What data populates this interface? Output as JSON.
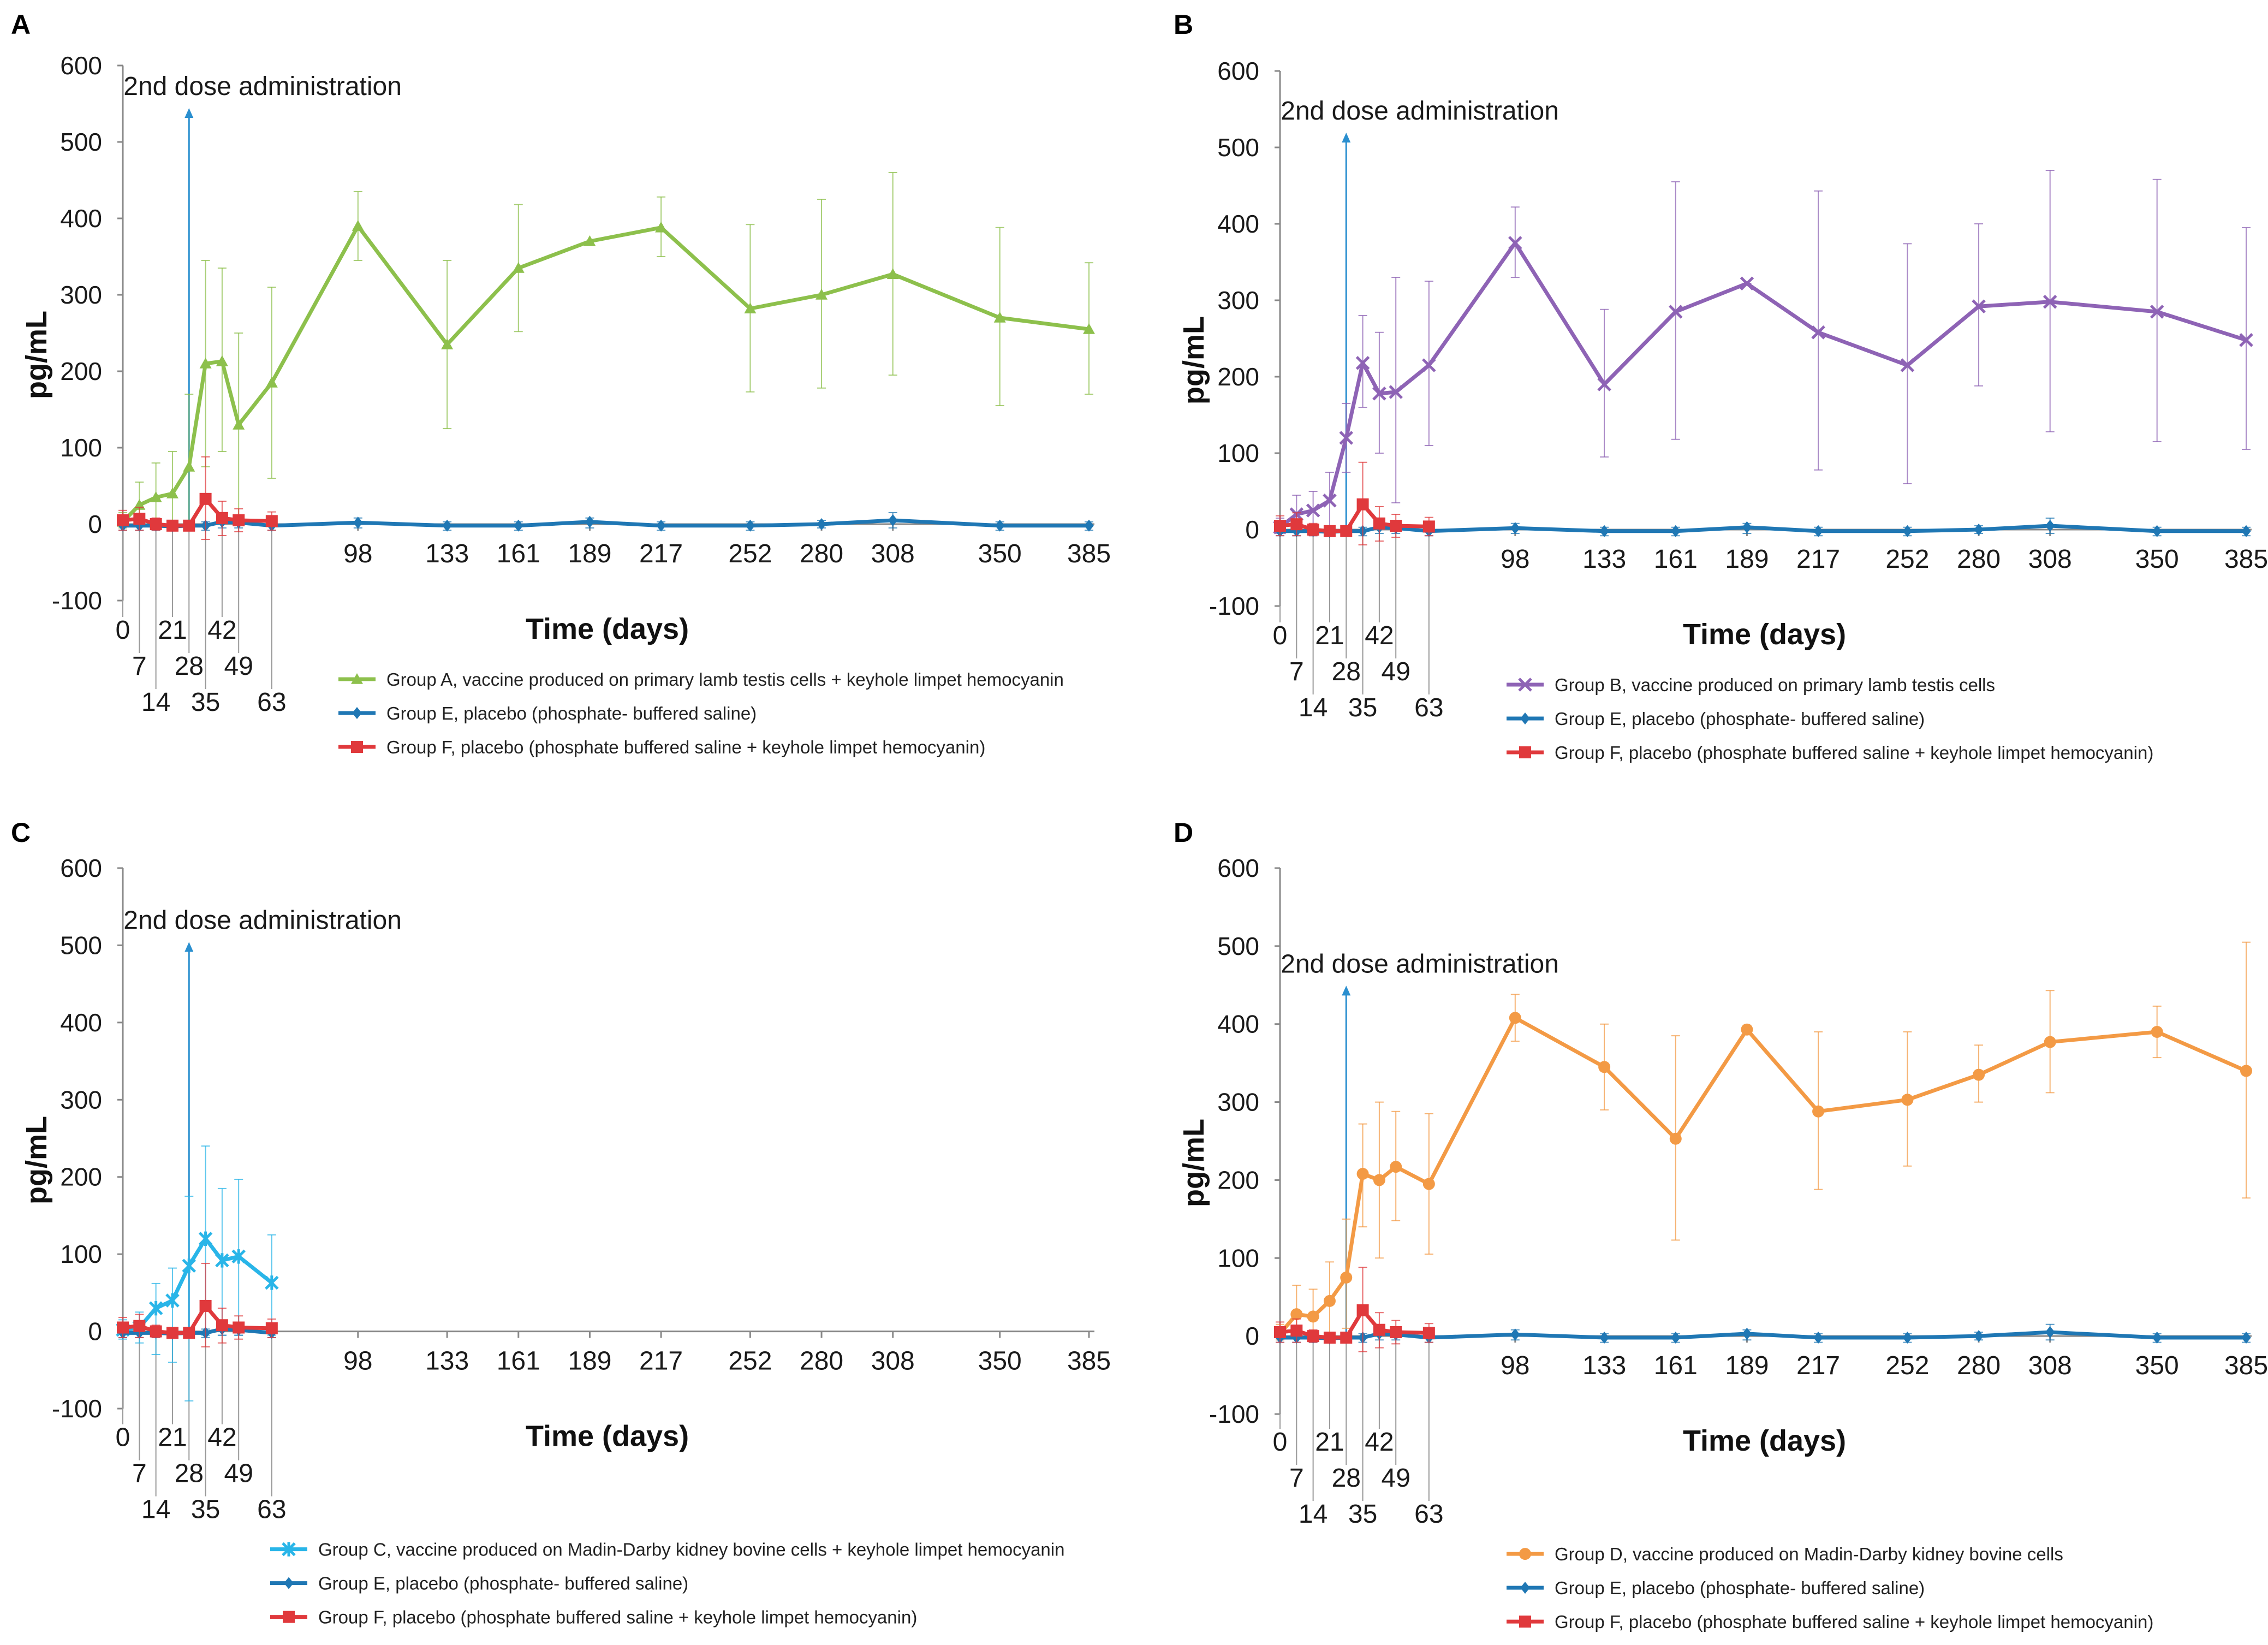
{
  "chart_data": [
    {
      "panel": "A",
      "type": "line",
      "annotation": "2nd dose administration",
      "annotation_day": 28,
      "ylabel": "pg/mL",
      "xlabel": "Time (days)",
      "ylim": [
        -100,
        600
      ],
      "yticks": [
        -100,
        0,
        100,
        200,
        300,
        400,
        500,
        600
      ],
      "x_ticks_late": [
        98,
        133,
        161,
        189,
        217,
        252,
        280,
        308,
        350,
        385
      ],
      "x_ticks_early": [
        0,
        7,
        14,
        21,
        28,
        35,
        42,
        49,
        63
      ],
      "series": [
        {
          "name": "Group A, vaccine produced on primary lamb testis cells + keyhole limpet hemocyanin",
          "color": "#8dc04c",
          "marker": "triangle",
          "x": [
            0,
            7,
            14,
            21,
            28,
            35,
            42,
            49,
            63,
            98,
            133,
            161,
            189,
            217,
            252,
            280,
            308,
            350,
            385
          ],
          "values": [
            3,
            25,
            35,
            40,
            75,
            210,
            213,
            130,
            185,
            390,
            235,
            335,
            370,
            388,
            282,
            300,
            327,
            270,
            255
          ],
          "err_hi": [
            15,
            55,
            80,
            95,
            170,
            345,
            335,
            250,
            310,
            435,
            345,
            418,
            370,
            428,
            392,
            425,
            460,
            388,
            342
          ],
          "err_lo": [
            -5,
            5,
            5,
            5,
            5,
            75,
            95,
            10,
            60,
            345,
            125,
            252,
            370,
            350,
            173,
            178,
            195,
            155,
            170
          ]
        },
        {
          "name": "Group E, placebo (phosphate- buffered saline)",
          "color": "#1f77b4",
          "marker": "diamond",
          "x": [
            0,
            7,
            14,
            21,
            28,
            35,
            42,
            49,
            63,
            98,
            133,
            161,
            189,
            217,
            252,
            280,
            308,
            350,
            385
          ],
          "values": [
            -2,
            -2,
            -2,
            -3,
            -2,
            -2,
            3,
            2,
            -2,
            2,
            -2,
            -2,
            3,
            -2,
            -2,
            0,
            5,
            -2,
            -2
          ],
          "err_hi": [
            3,
            3,
            3,
            3,
            3,
            3,
            10,
            8,
            3,
            8,
            3,
            3,
            8,
            3,
            3,
            5,
            15,
            3,
            3
          ],
          "err_lo": [
            -8,
            -8,
            -8,
            -8,
            -8,
            -8,
            -5,
            -5,
            -8,
            -5,
            -8,
            -8,
            -5,
            -8,
            -8,
            -5,
            -5,
            -8,
            -8
          ]
        },
        {
          "name": "Group F, placebo (phosphate buffered saline + keyhole limpet hemocyanin)",
          "color": "#e0393c",
          "marker": "square",
          "x": [
            0,
            7,
            14,
            21,
            28,
            35,
            42,
            49,
            63
          ],
          "values": [
            5,
            7,
            0,
            -2,
            -2,
            33,
            8,
            5,
            4
          ],
          "err_hi": [
            18,
            22,
            8,
            5,
            5,
            88,
            30,
            20,
            16
          ],
          "err_lo": [
            -8,
            -8,
            -8,
            -8,
            -8,
            -20,
            -15,
            -10,
            -8
          ]
        }
      ]
    },
    {
      "panel": "B",
      "type": "line",
      "annotation": "2nd dose administration",
      "annotation_day": 28,
      "ylabel": "pg/mL",
      "xlabel": "Time (days)",
      "ylim": [
        -100,
        600
      ],
      "yticks": [
        -100,
        0,
        100,
        200,
        300,
        400,
        500,
        600
      ],
      "x_ticks_late": [
        98,
        133,
        161,
        189,
        217,
        252,
        280,
        308,
        350,
        385
      ],
      "x_ticks_early": [
        0,
        7,
        14,
        21,
        28,
        35,
        42,
        49,
        63
      ],
      "series": [
        {
          "name": "Group B, vaccine produced on primary lamb testis cells",
          "color": "#8e63b5",
          "marker": "cross",
          "x": [
            0,
            7,
            14,
            21,
            28,
            35,
            42,
            49,
            63,
            98,
            133,
            161,
            189,
            217,
            252,
            280,
            308,
            350,
            385
          ],
          "values": [
            3,
            20,
            25,
            38,
            120,
            218,
            178,
            180,
            215,
            375,
            190,
            285,
            322,
            258,
            215,
            292,
            298,
            285,
            248
          ],
          "err_hi": [
            15,
            45,
            50,
            75,
            165,
            280,
            258,
            330,
            325,
            422,
            288,
            455,
            322,
            443,
            374,
            400,
            470,
            458,
            395
          ],
          "err_lo": [
            -5,
            0,
            0,
            5,
            75,
            160,
            100,
            35,
            110,
            330,
            95,
            118,
            322,
            78,
            60,
            188,
            128,
            115,
            105
          ]
        },
        {
          "name": "Group E, placebo (phosphate- buffered saline)",
          "color": "#1f77b4",
          "marker": "diamond",
          "x": [
            0,
            7,
            14,
            21,
            28,
            35,
            42,
            49,
            63,
            98,
            133,
            161,
            189,
            217,
            252,
            280,
            308,
            350,
            385
          ],
          "values": [
            -2,
            -2,
            -2,
            -3,
            -2,
            -2,
            3,
            2,
            -2,
            2,
            -2,
            -2,
            3,
            -2,
            -2,
            0,
            5,
            -2,
            -2
          ],
          "err_hi": [
            3,
            3,
            3,
            3,
            3,
            3,
            10,
            8,
            3,
            8,
            3,
            3,
            8,
            3,
            3,
            5,
            15,
            3,
            3
          ],
          "err_lo": [
            -8,
            -8,
            -8,
            -8,
            -8,
            -8,
            -5,
            -5,
            -8,
            -5,
            -8,
            -8,
            -5,
            -8,
            -8,
            -5,
            -5,
            -8,
            -8
          ]
        },
        {
          "name": "Group F, placebo (phosphate buffered saline + keyhole limpet hemocyanin)",
          "color": "#e0393c",
          "marker": "square",
          "x": [
            0,
            7,
            14,
            21,
            28,
            35,
            42,
            49,
            63
          ],
          "values": [
            5,
            7,
            0,
            -2,
            -2,
            33,
            8,
            5,
            4
          ],
          "err_hi": [
            18,
            22,
            8,
            5,
            5,
            88,
            30,
            20,
            16
          ],
          "err_lo": [
            -8,
            -8,
            -8,
            -8,
            -8,
            -20,
            -15,
            -10,
            -8
          ]
        }
      ]
    },
    {
      "panel": "C",
      "type": "line",
      "annotation": "2nd dose administration",
      "annotation_day": 28,
      "ylabel": "pg/mL",
      "xlabel": "Time (days)",
      "ylim": [
        -100,
        600
      ],
      "yticks": [
        -100,
        0,
        100,
        200,
        300,
        400,
        500,
        600
      ],
      "x_ticks_late": [
        98,
        133,
        161,
        189,
        217,
        252,
        280,
        308,
        350,
        385
      ],
      "x_ticks_early": [
        0,
        7,
        14,
        21,
        28,
        35,
        42,
        49,
        63
      ],
      "series": [
        {
          "name": "Group C, vaccine produced on Madin-Darby kidney bovine cells + keyhole limpet hemocyanin",
          "color": "#29b5e8",
          "marker": "star",
          "x": [
            0,
            7,
            14,
            21,
            28,
            35,
            42,
            49,
            63
          ],
          "values": [
            2,
            5,
            30,
            40,
            85,
            120,
            92,
            97,
            63
          ],
          "err_hi": [
            15,
            25,
            62,
            82,
            175,
            240,
            185,
            197,
            125
          ],
          "err_lo": [
            -10,
            -15,
            -30,
            -40,
            -90,
            -5,
            -5,
            -5,
            -5
          ]
        },
        {
          "name": "Group E, placebo (phosphate- buffered saline)",
          "color": "#1f77b4",
          "marker": "diamond",
          "x": [
            0,
            7,
            14,
            21,
            28,
            35,
            42,
            49,
            63
          ],
          "values": [
            -2,
            -2,
            -2,
            -3,
            -2,
            -2,
            3,
            2,
            -2
          ],
          "err_hi": [
            3,
            3,
            3,
            3,
            3,
            3,
            10,
            8,
            3
          ],
          "err_lo": [
            -8,
            -8,
            -8,
            -8,
            -8,
            -8,
            -5,
            -5,
            -8
          ]
        },
        {
          "name": "Group F, placebo (phosphate buffered saline + keyhole limpet hemocyanin)",
          "color": "#e0393c",
          "marker": "square",
          "x": [
            0,
            7,
            14,
            21,
            28,
            35,
            42,
            49,
            63
          ],
          "values": [
            5,
            7,
            0,
            -2,
            -2,
            33,
            8,
            5,
            4
          ],
          "err_hi": [
            18,
            22,
            8,
            5,
            5,
            88,
            30,
            20,
            16
          ],
          "err_lo": [
            -8,
            -8,
            -8,
            -8,
            -8,
            -20,
            -15,
            -10,
            -8
          ]
        }
      ]
    },
    {
      "panel": "D",
      "type": "line",
      "annotation": "2nd dose administration",
      "annotation_day": 28,
      "ylabel": "pg/mL",
      "xlabel": "Time (days)",
      "ylim": [
        -100,
        600
      ],
      "yticks": [
        -100,
        0,
        100,
        200,
        300,
        400,
        500,
        600
      ],
      "x_ticks_late": [
        98,
        133,
        161,
        189,
        217,
        252,
        280,
        308,
        350,
        385
      ],
      "x_ticks_early": [
        0,
        7,
        14,
        21,
        28,
        35,
        42,
        49,
        63
      ],
      "series": [
        {
          "name": "Group D, vaccine produced on Madin-Darby kidney bovine cells",
          "color": "#f39a45",
          "marker": "circle",
          "x": [
            0,
            7,
            14,
            21,
            28,
            35,
            42,
            49,
            63,
            98,
            133,
            161,
            189,
            217,
            252,
            280,
            308,
            350,
            385
          ],
          "values": [
            3,
            28,
            25,
            45,
            75,
            208,
            200,
            217,
            195,
            408,
            345,
            253,
            393,
            288,
            303,
            335,
            377,
            390,
            340
          ],
          "err_hi": [
            15,
            65,
            60,
            95,
            150,
            272,
            300,
            288,
            285,
            438,
            400,
            385,
            393,
            390,
            390,
            373,
            443,
            423,
            505
          ],
          "err_lo": [
            -5,
            0,
            0,
            5,
            10,
            140,
            100,
            148,
            105,
            378,
            290,
            123,
            393,
            188,
            218,
            300,
            312,
            357,
            177
          ]
        },
        {
          "name": "Group E, placebo (phosphate- buffered saline)",
          "color": "#1f77b4",
          "marker": "diamond",
          "x": [
            0,
            7,
            14,
            21,
            28,
            35,
            42,
            49,
            63,
            98,
            133,
            161,
            189,
            217,
            252,
            280,
            308,
            350,
            385
          ],
          "values": [
            -2,
            -2,
            -2,
            -3,
            -2,
            -2,
            3,
            2,
            -2,
            2,
            -2,
            -2,
            3,
            -2,
            -2,
            0,
            5,
            -2,
            -2
          ],
          "err_hi": [
            3,
            3,
            3,
            3,
            3,
            3,
            10,
            8,
            3,
            8,
            3,
            3,
            8,
            3,
            3,
            5,
            15,
            3,
            3
          ],
          "err_lo": [
            -8,
            -8,
            -8,
            -8,
            -8,
            -8,
            -5,
            -5,
            -8,
            -5,
            -8,
            -8,
            -5,
            -8,
            -8,
            -5,
            -5,
            -8,
            -8
          ]
        },
        {
          "name": "Group F, placebo (phosphate buffered saline + keyhole limpet hemocyanin)",
          "color": "#e0393c",
          "marker": "square",
          "x": [
            0,
            7,
            14,
            21,
            28,
            35,
            42,
            49,
            63
          ],
          "values": [
            5,
            7,
            0,
            -2,
            -2,
            33,
            8,
            5,
            4
          ],
          "err_hi": [
            18,
            22,
            8,
            5,
            5,
            88,
            30,
            20,
            16
          ],
          "err_lo": [
            -8,
            -8,
            -8,
            -8,
            -8,
            -20,
            -15,
            -10,
            -8
          ]
        }
      ]
    }
  ]
}
